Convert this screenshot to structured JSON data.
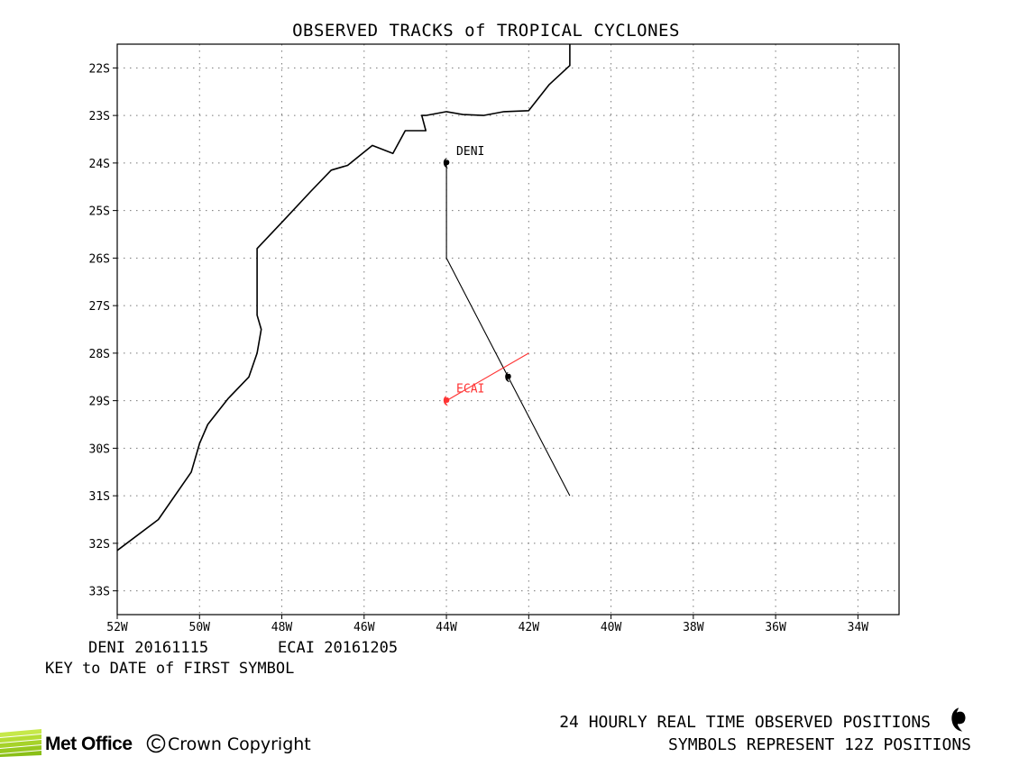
{
  "title": "OBSERVED TRACKS of TROPICAL CYCLONES",
  "map": {
    "lon_range": [
      -52,
      -33
    ],
    "lat_range": [
      -33.5,
      -21.5
    ],
    "x_ticks": [
      {
        "value": -52,
        "label": "52W"
      },
      {
        "value": -50,
        "label": "50W"
      },
      {
        "value": -48,
        "label": "48W"
      },
      {
        "value": -46,
        "label": "46W"
      },
      {
        "value": -44,
        "label": "44W"
      },
      {
        "value": -42,
        "label": "42W"
      },
      {
        "value": -40,
        "label": "40W"
      },
      {
        "value": -38,
        "label": "38W"
      },
      {
        "value": -36,
        "label": "36W"
      },
      {
        "value": -34,
        "label": "34W"
      }
    ],
    "y_ticks": [
      {
        "value": -22,
        "label": "22S"
      },
      {
        "value": -23,
        "label": "23S"
      },
      {
        "value": -24,
        "label": "24S"
      },
      {
        "value": -25,
        "label": "25S"
      },
      {
        "value": -26,
        "label": "26S"
      },
      {
        "value": -27,
        "label": "27S"
      },
      {
        "value": -28,
        "label": "28S"
      },
      {
        "value": -29,
        "label": "29S"
      },
      {
        "value": -30,
        "label": "30S"
      },
      {
        "value": -31,
        "label": "31S"
      },
      {
        "value": -32,
        "label": "32S"
      },
      {
        "value": -33,
        "label": "33S"
      }
    ],
    "grid": true,
    "coastline": [
      [
        -41.0,
        -21.5
      ],
      [
        -41.0,
        -21.95
      ],
      [
        -41.5,
        -22.35
      ],
      [
        -42.0,
        -22.9
      ],
      [
        -42.6,
        -22.92
      ],
      [
        -43.1,
        -23.0
      ],
      [
        -43.6,
        -22.98
      ],
      [
        -44.0,
        -22.92
      ],
      [
        -44.5,
        -23.0
      ],
      [
        -44.6,
        -23.0
      ],
      [
        -44.5,
        -23.32
      ],
      [
        -45.0,
        -23.32
      ],
      [
        -45.3,
        -23.8
      ],
      [
        -45.8,
        -23.63
      ],
      [
        -46.4,
        -24.05
      ],
      [
        -46.8,
        -24.15
      ],
      [
        -47.3,
        -24.6
      ],
      [
        -48.0,
        -25.25
      ],
      [
        -48.6,
        -25.8
      ],
      [
        -48.6,
        -27.2
      ],
      [
        -48.5,
        -27.5
      ],
      [
        -48.6,
        -28.0
      ],
      [
        -48.8,
        -28.5
      ],
      [
        -49.3,
        -28.95
      ],
      [
        -49.8,
        -29.5
      ],
      [
        -50.0,
        -29.9
      ],
      [
        -50.2,
        -30.5
      ],
      [
        -51.0,
        -31.5
      ],
      [
        -52.0,
        -32.15
      ]
    ]
  },
  "storms": [
    {
      "name": "DENI",
      "color": "#000000",
      "key_date": "20161115",
      "track": [
        [
          -44.0,
          -24.0
        ],
        [
          -44.0,
          -26.0
        ],
        [
          -42.5,
          -28.5
        ],
        [
          -41.0,
          -31.0
        ]
      ],
      "symbols": [
        [
          -44.0,
          -24.0
        ],
        [
          -42.5,
          -28.5
        ]
      ],
      "label_at": [
        -44.0,
        -24.0
      ]
    },
    {
      "name": "ECAI",
      "color": "#ff3333",
      "key_date": "20161205",
      "track": [
        [
          -44.0,
          -29.0
        ],
        [
          -42.0,
          -28.0
        ]
      ],
      "symbols": [
        [
          -44.0,
          -29.0
        ]
      ],
      "label_at": [
        -44.0,
        -29.0
      ]
    }
  ],
  "key_caption": "KEY to DATE of FIRST SYMBOL",
  "footer": {
    "line1": "24 HOURLY REAL TIME OBSERVED POSITIONS",
    "line2": "SYMBOLS REPRESENT 12Z POSITIONS",
    "symbol_icon": "tropical-cyclone-symbol-icon",
    "logo_text": "Met Office",
    "logo_icon": "met-office-wave-logo-icon",
    "copyright": "Crown Copyright"
  }
}
